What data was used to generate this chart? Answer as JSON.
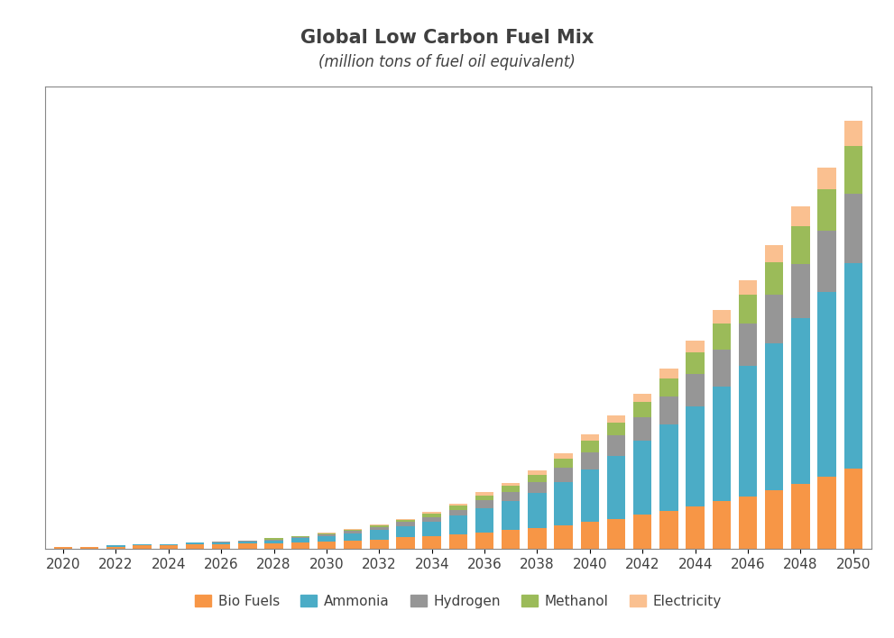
{
  "title": "Global Low Carbon Fuel Mix",
  "subtitle": "(million tons of fuel oil equivalent)",
  "years": [
    2020,
    2021,
    2022,
    2023,
    2024,
    2025,
    2026,
    2027,
    2028,
    2029,
    2030,
    2031,
    2032,
    2033,
    2034,
    2035,
    2036,
    2037,
    2038,
    2039,
    2040,
    2041,
    2042,
    2043,
    2044,
    2045,
    2046,
    2047,
    2048,
    2049,
    2050
  ],
  "bio_fuels": [
    2,
    2,
    2,
    3,
    3,
    4,
    4,
    5,
    5,
    6,
    7,
    8,
    9,
    11,
    12,
    14,
    16,
    18,
    20,
    23,
    26,
    29,
    33,
    37,
    41,
    46,
    51,
    57,
    63,
    70,
    78
  ],
  "ammonia": [
    0,
    0,
    1,
    1,
    1,
    2,
    2,
    2,
    3,
    4,
    5,
    7,
    9,
    11,
    14,
    18,
    23,
    28,
    34,
    42,
    51,
    61,
    72,
    84,
    97,
    112,
    127,
    143,
    161,
    180,
    200
  ],
  "hydrogen": [
    0,
    0,
    0,
    0,
    0,
    0,
    1,
    1,
    1,
    1,
    2,
    2,
    3,
    4,
    5,
    6,
    8,
    9,
    11,
    14,
    17,
    20,
    23,
    27,
    32,
    36,
    41,
    47,
    53,
    59,
    67
  ],
  "methanol": [
    0,
    0,
    0,
    0,
    0,
    0,
    0,
    0,
    1,
    1,
    1,
    1,
    2,
    2,
    3,
    4,
    5,
    6,
    7,
    9,
    11,
    13,
    15,
    18,
    21,
    25,
    28,
    32,
    37,
    41,
    47
  ],
  "electricity": [
    0,
    0,
    0,
    0,
    0,
    0,
    0,
    0,
    0,
    0,
    1,
    1,
    1,
    1,
    2,
    2,
    3,
    3,
    4,
    5,
    6,
    7,
    8,
    9,
    11,
    13,
    14,
    16,
    19,
    21,
    24
  ],
  "colors": {
    "bio_fuels": "#f79646",
    "ammonia": "#4bacc6",
    "hydrogen": "#969696",
    "methanol": "#9bbb59",
    "electricity": "#fac090"
  },
  "xtick_years": [
    2020,
    2022,
    2024,
    2026,
    2028,
    2030,
    2032,
    2034,
    2036,
    2038,
    2040,
    2042,
    2044,
    2046,
    2048,
    2050
  ],
  "bar_width": 0.7,
  "background_color": "#ffffff",
  "plot_bg": "#ffffff",
  "title_fontsize": 15,
  "subtitle_fontsize": 12,
  "tick_fontsize": 11,
  "legend_fontsize": 11,
  "ylim_max": 450
}
